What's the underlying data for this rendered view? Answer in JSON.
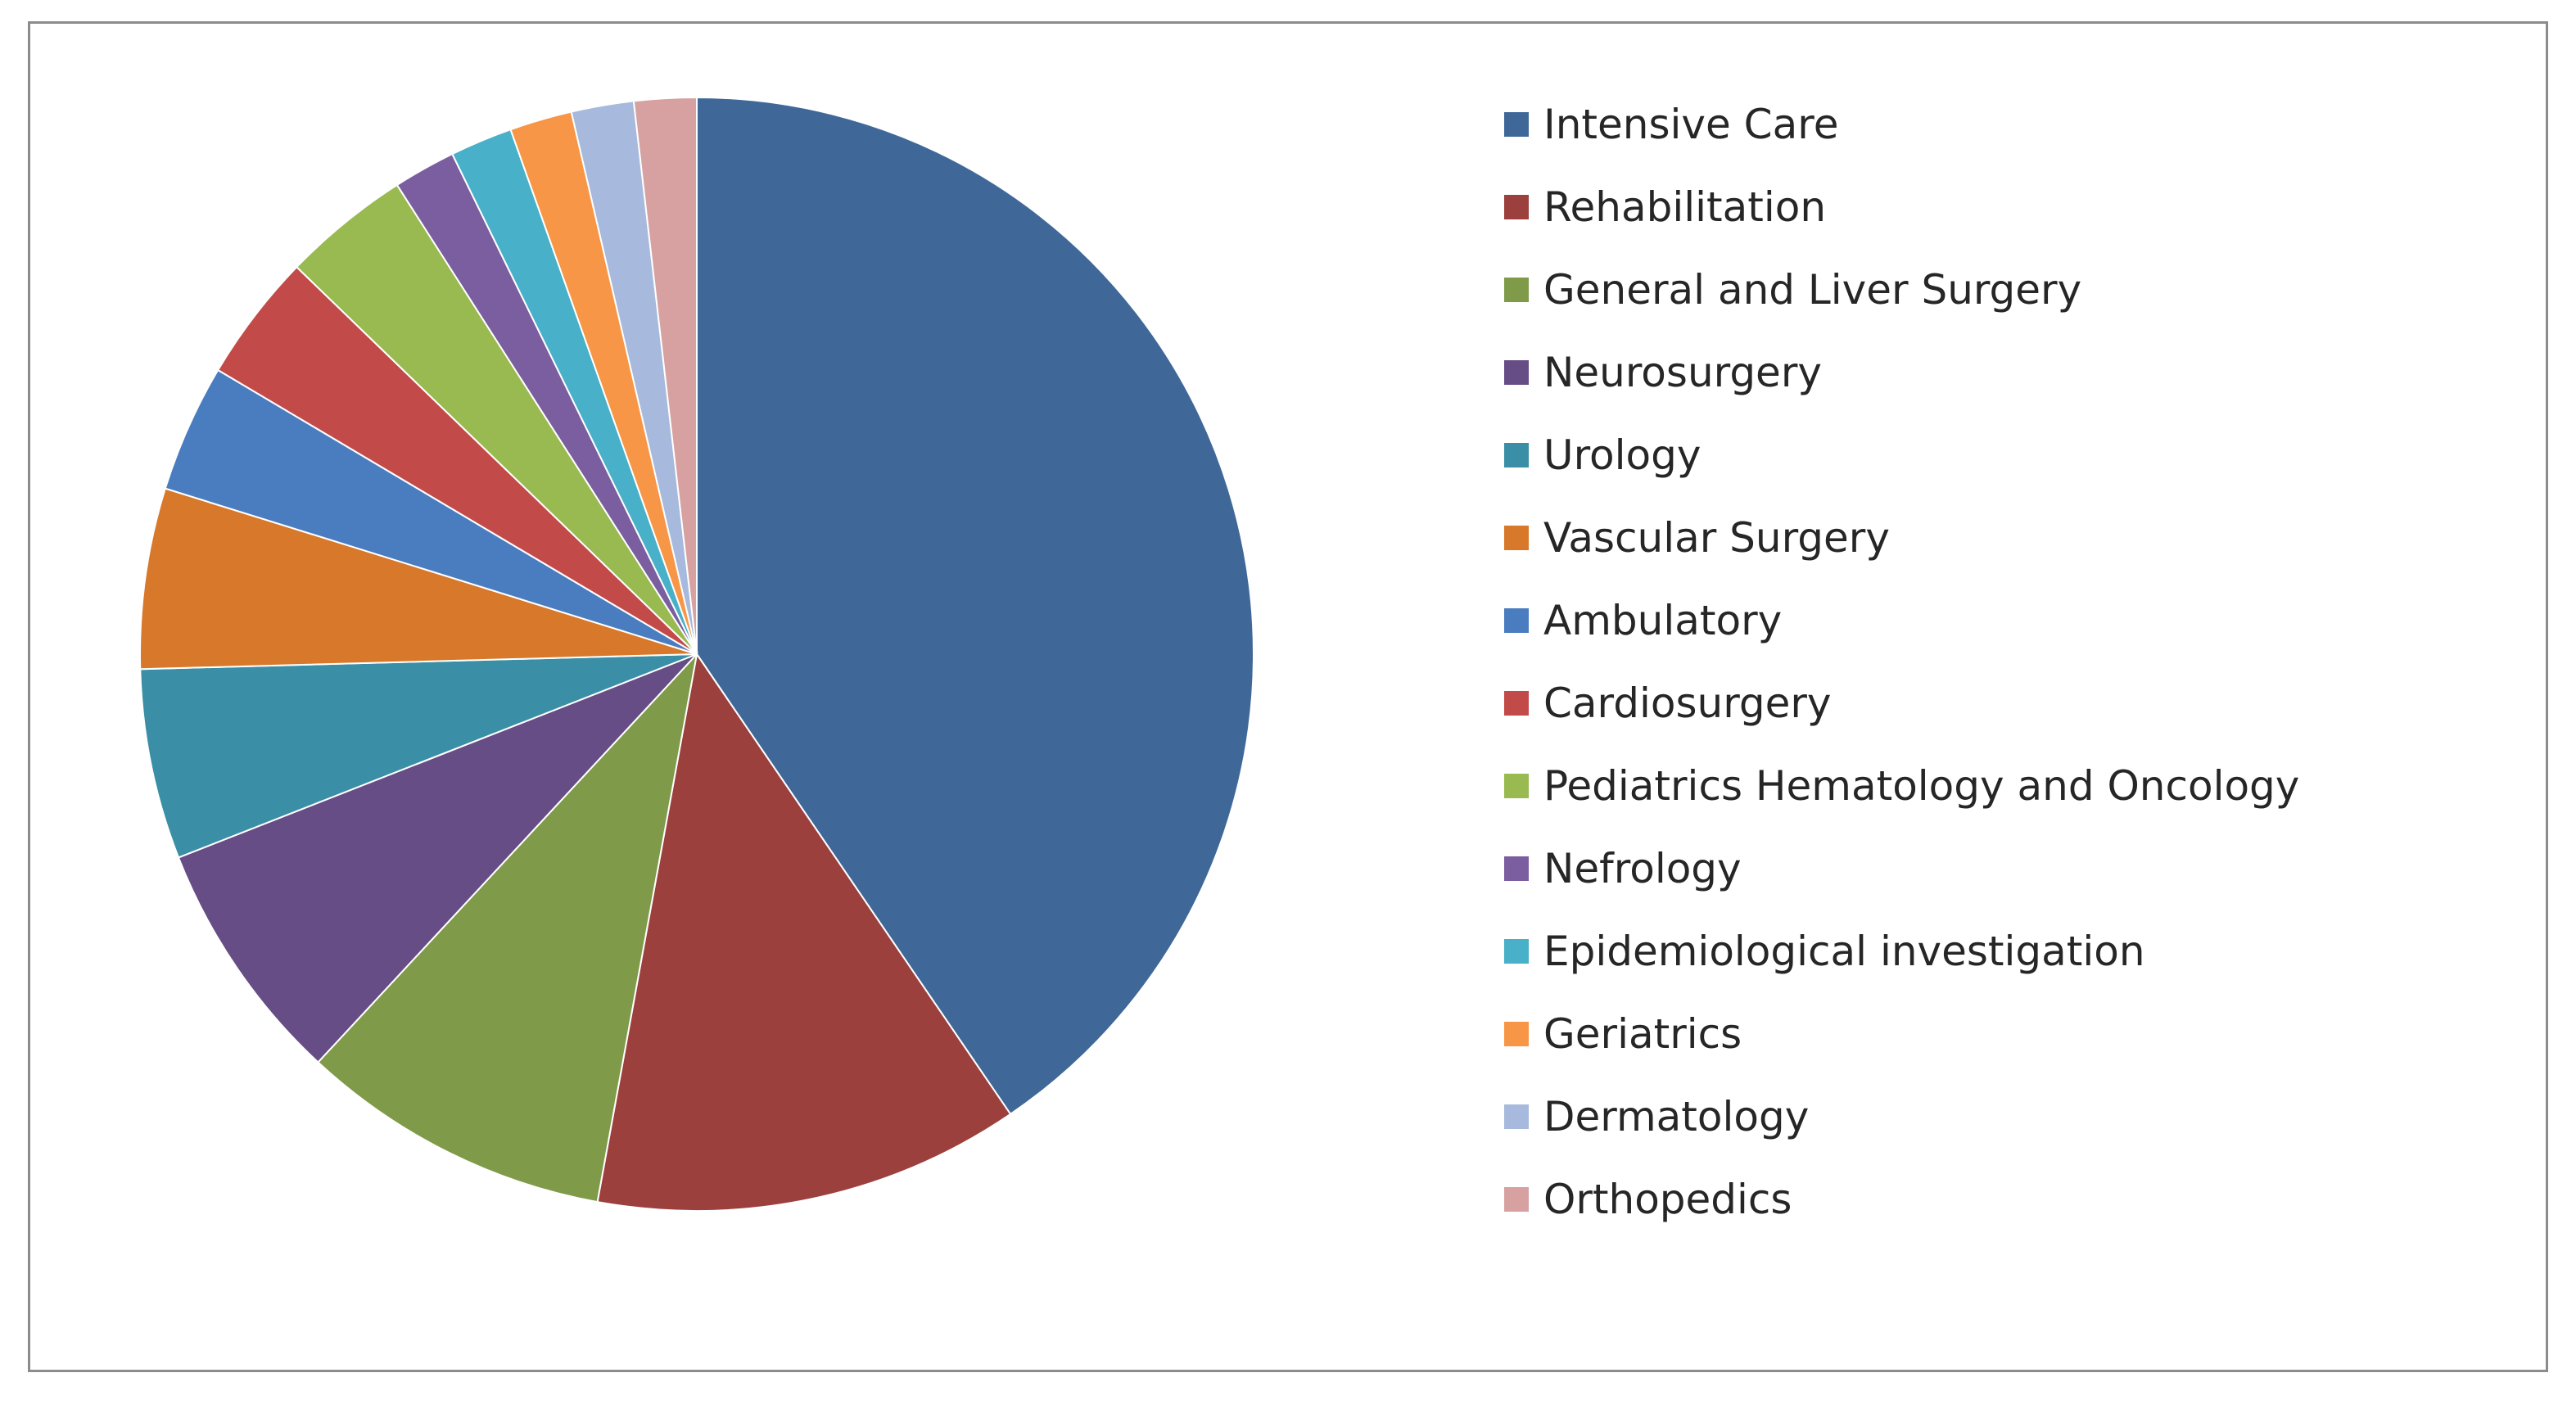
{
  "chart_data": {
    "type": "pie",
    "title": "",
    "categories": [
      "Intensive Care",
      "Rehabilitation",
      "General and Liver Surgery",
      "Neurosurgery",
      "Urology",
      "Vascular Surgery",
      "Ambulatory",
      "Cardiosurgery",
      "Pediatrics Hematology and Oncology",
      "Nefrology",
      "Epidemiological investigation",
      "Geriatrics",
      "Dermatology",
      "Orthopedics"
    ],
    "values": [
      42.5,
      13.0,
      9.5,
      7.5,
      5.8,
      5.5,
      3.9,
      3.9,
      3.9,
      1.9,
      1.9,
      1.9,
      1.9,
      1.9
    ],
    "colors": [
      "#3F6899",
      "#9C403E",
      "#7F9A48",
      "#664D85",
      "#3A8FA6",
      "#D7782B",
      "#4A7DC0",
      "#C24B49",
      "#98BA50",
      "#7B5EA0",
      "#48B0C8",
      "#F79646",
      "#A7B9DC",
      "#D7A1A1"
    ],
    "legend_position": "right",
    "start_angle": "12 o'clock, clockwise"
  }
}
